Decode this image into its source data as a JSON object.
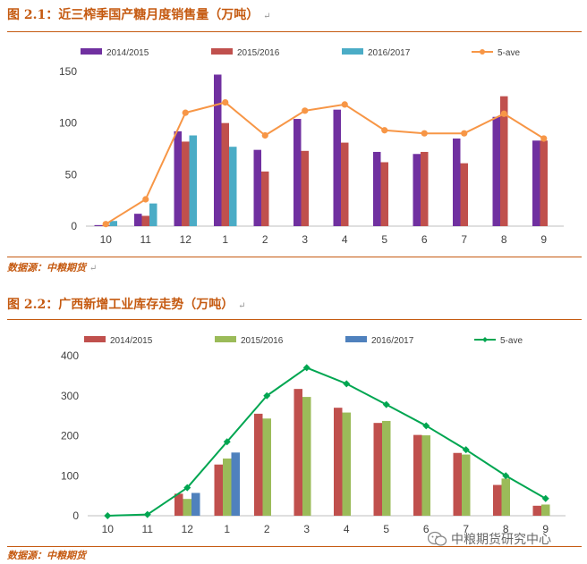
{
  "figure1": {
    "title": "图 2.1：近三榨季国产糖月度销售量（万吨）",
    "source": "数据源：中粮期货"
  },
  "figure2": {
    "title": "图 2.2：广西新增工业库存走势（万吨）",
    "source": "数据源：中粮期货"
  },
  "paragraph_mark": "↵",
  "watermark": "中粮期货研究中心",
  "chart_data": [
    {
      "type": "bar",
      "title": "近三榨季国产糖月度销售量（万吨）",
      "categories": [
        "10",
        "11",
        "12",
        "1",
        "2",
        "3",
        "4",
        "5",
        "6",
        "7",
        "8",
        "9"
      ],
      "ylim": [
        0,
        150
      ],
      "yticks": [
        0,
        50,
        100,
        150
      ],
      "legend_position": "top",
      "series": [
        {
          "name": "2014/2015",
          "type": "bar",
          "color": "#7030a0",
          "values": [
            1,
            12,
            92,
            147,
            74,
            104,
            113,
            72,
            70,
            85,
            106,
            83
          ]
        },
        {
          "name": "2015/2016",
          "type": "bar",
          "color": "#c0504d",
          "values": [
            1,
            10,
            82,
            100,
            53,
            73,
            81,
            62,
            72,
            61,
            126,
            83
          ]
        },
        {
          "name": "2016/2017",
          "type": "bar",
          "color": "#4bacc6",
          "values": [
            5,
            22,
            88,
            77,
            null,
            null,
            null,
            null,
            null,
            null,
            null,
            null
          ]
        },
        {
          "name": "5-ave",
          "type": "line",
          "color": "#f79646",
          "values": [
            2,
            26,
            110,
            120,
            88,
            112,
            118,
            93,
            90,
            90,
            109,
            85
          ]
        }
      ]
    },
    {
      "type": "bar",
      "title": "广西新增工业库存走势（万吨）",
      "categories": [
        "10",
        "11",
        "12",
        "1",
        "2",
        "3",
        "4",
        "5",
        "6",
        "7",
        "8",
        "9"
      ],
      "ylim": [
        0,
        400
      ],
      "yticks": [
        0,
        100,
        200,
        300,
        400
      ],
      "legend_position": "top",
      "series": [
        {
          "name": "2014/2015",
          "type": "bar",
          "color": "#c0504d",
          "values": [
            0,
            0,
            55,
            128,
            255,
            317,
            270,
            232,
            202,
            157,
            77,
            25
          ]
        },
        {
          "name": "2015/2016",
          "type": "bar",
          "color": "#9bbb59",
          "values": [
            0,
            0,
            42,
            143,
            243,
            297,
            258,
            237,
            201,
            153,
            93,
            28
          ]
        },
        {
          "name": "2016/2017",
          "type": "bar",
          "color": "#4f81bd",
          "values": [
            null,
            null,
            57,
            158,
            null,
            null,
            null,
            null,
            null,
            null,
            null,
            null
          ]
        },
        {
          "name": "5-ave",
          "type": "line",
          "color": "#00a651",
          "values": [
            0,
            3,
            70,
            185,
            300,
            370,
            330,
            278,
            225,
            165,
            100,
            43
          ]
        }
      ]
    }
  ]
}
